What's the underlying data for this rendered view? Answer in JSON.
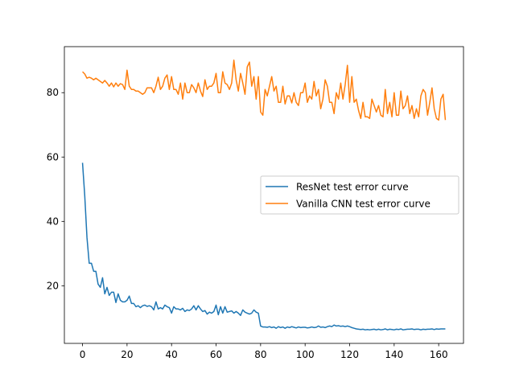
{
  "chart_data": {
    "type": "line",
    "x": [
      0,
      1,
      2,
      3,
      4,
      5,
      6,
      7,
      8,
      9,
      10,
      11,
      12,
      13,
      14,
      15,
      16,
      17,
      18,
      19,
      20,
      21,
      22,
      23,
      24,
      25,
      26,
      27,
      28,
      29,
      30,
      31,
      32,
      33,
      34,
      35,
      36,
      37,
      38,
      39,
      40,
      41,
      42,
      43,
      44,
      45,
      46,
      47,
      48,
      49,
      50,
      51,
      52,
      53,
      54,
      55,
      56,
      57,
      58,
      59,
      60,
      61,
      62,
      63,
      64,
      65,
      66,
      67,
      68,
      69,
      70,
      71,
      72,
      73,
      74,
      75,
      76,
      77,
      78,
      79,
      80,
      81,
      82,
      83,
      84,
      85,
      86,
      87,
      88,
      89,
      90,
      91,
      92,
      93,
      94,
      95,
      96,
      97,
      98,
      99,
      100,
      101,
      102,
      103,
      104,
      105,
      106,
      107,
      108,
      109,
      110,
      111,
      112,
      113,
      114,
      115,
      116,
      117,
      118,
      119,
      120,
      121,
      122,
      123,
      124,
      125,
      126,
      127,
      128,
      129,
      130,
      131,
      132,
      133,
      134,
      135,
      136,
      137,
      138,
      139,
      140,
      141,
      142,
      143,
      144,
      145,
      146,
      147,
      148,
      149,
      150,
      151,
      152,
      153,
      154,
      155,
      156,
      157,
      158,
      159,
      160,
      161,
      162,
      163
    ],
    "series": [
      {
        "name": "ResNet test error curve",
        "color": "#1f77b4",
        "values": [
          58.2,
          48,
          35,
          27,
          27,
          24.5,
          24.5,
          20.5,
          19.5,
          22.5,
          17.5,
          19.5,
          17,
          18,
          18,
          14.8,
          17.5,
          15.5,
          15,
          15,
          15.5,
          16.8,
          14.5,
          14.5,
          13.5,
          13.8,
          13.2,
          13.8,
          14,
          13.6,
          13.8,
          13.5,
          12.5,
          15,
          12.8,
          13.2,
          12.8,
          14,
          13.5,
          13.2,
          11.5,
          13.5,
          12.8,
          12.8,
          12.5,
          13,
          12,
          12.5,
          12.3,
          12.8,
          13.8,
          12.5,
          13.8,
          12.8,
          12,
          12.3,
          11.2,
          11.8,
          11.5,
          12,
          14,
          11,
          13.5,
          11.5,
          13.5,
          11.8,
          12,
          12.2,
          11.5,
          12,
          11.5,
          10.8,
          12.5,
          11.8,
          11.5,
          11.2,
          11.5,
          12.5,
          11.8,
          11.5,
          7.5,
          7.2,
          7.2,
          7.1,
          7.3,
          7,
          7.2,
          6.8,
          7.3,
          7,
          7.2,
          6.8,
          7.2,
          7,
          7.3,
          7.1,
          6.9,
          7.2,
          7,
          7.1,
          7.1,
          6.9,
          7,
          7.2,
          7,
          7.1,
          7.5,
          7.1,
          7.2,
          7,
          7.3,
          7.5,
          7.3,
          7.8,
          7.5,
          7.6,
          7.4,
          7.5,
          7.3,
          7.5,
          7.3,
          7,
          6.8,
          6.6,
          6.5,
          6.4,
          6.5,
          6.3,
          6.4,
          6.3,
          6.4,
          6.5,
          6.3,
          6.5,
          6.3,
          6.4,
          6.6,
          6.3,
          6.5,
          6.4,
          6.3,
          6.5,
          6.4,
          6.6,
          6.3,
          6.4,
          6.5,
          6.5,
          6.6,
          6.4,
          6.5,
          6.5,
          6.3,
          6.5,
          6.4,
          6.5,
          6.5,
          6.6,
          6.4,
          6.6,
          6.5,
          6.6,
          6.6,
          6.6
        ]
      },
      {
        "name": "Vanilla CNN test error curve",
        "color": "#ff7f0e",
        "values": [
          86.5,
          85.8,
          84.5,
          84.8,
          84.5,
          84,
          84.5,
          84,
          83.5,
          83,
          83.8,
          83,
          82,
          83,
          81.8,
          83,
          82,
          82.8,
          82.5,
          81,
          87,
          82,
          81,
          81,
          80.5,
          80.5,
          80,
          79.5,
          80,
          81.5,
          81.5,
          81.5,
          80,
          82,
          84.8,
          81,
          82,
          84.5,
          85.5,
          81,
          85,
          81,
          81,
          79.5,
          83,
          78,
          83,
          80,
          80,
          82.5,
          81.5,
          80,
          83,
          80.5,
          78.8,
          84,
          81,
          82,
          82,
          83,
          86,
          80,
          80,
          86.5,
          83,
          82.5,
          81,
          83,
          90.1,
          84,
          80.5,
          86,
          83,
          79.5,
          88,
          89.5,
          82,
          85,
          78,
          85,
          74,
          73,
          81,
          79,
          82,
          85,
          80.5,
          82,
          77,
          77,
          82,
          76.5,
          79,
          79,
          76.8,
          80,
          77,
          76,
          80,
          80,
          83,
          77,
          79,
          78,
          83.5,
          79,
          81,
          75,
          78,
          84,
          82,
          77,
          77,
          73.5,
          80,
          78,
          83,
          78,
          82.5,
          88.5,
          77,
          85,
          77,
          78,
          74.5,
          72,
          77,
          72.5,
          72.5,
          72,
          78,
          76,
          74,
          76,
          73,
          72.5,
          81,
          73.5,
          77,
          72.5,
          80,
          73,
          73,
          80.5,
          75,
          76,
          79,
          73.5,
          76,
          72,
          75,
          72.5,
          79,
          81,
          80,
          73,
          77,
          81.5,
          75,
          72,
          71.5,
          78,
          79.5,
          71.5
        ]
      }
    ],
    "xlim": [
      -8.15,
      171.15
    ],
    "xticks": [
      0,
      20,
      40,
      60,
      80,
      100,
      120,
      140,
      160
    ],
    "ylim": [
      2.1,
      94.3
    ],
    "yticks": [
      20,
      40,
      60,
      80
    ],
    "legend": "center right"
  }
}
